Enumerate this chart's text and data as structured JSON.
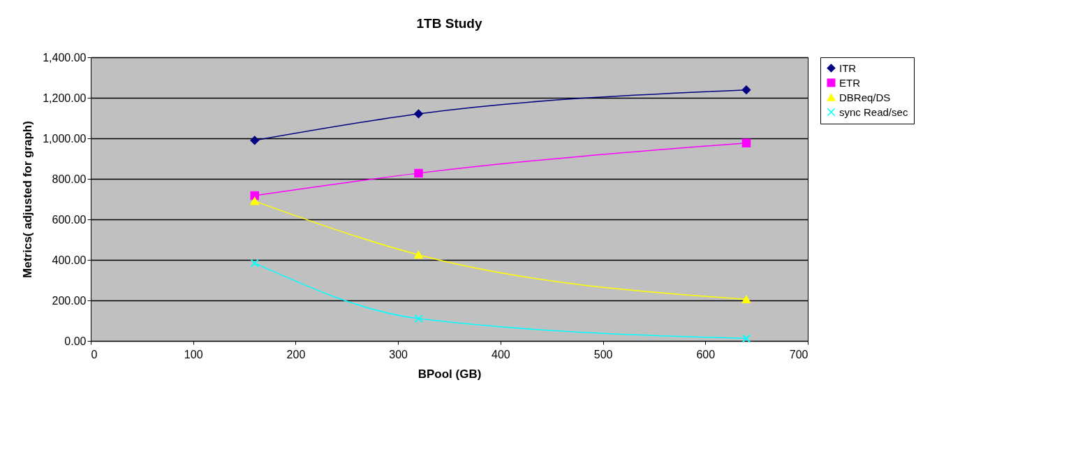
{
  "chart_data": {
    "type": "line",
    "title": "1TB Study",
    "xlabel": "BPool (GB)",
    "ylabel": "Metrics( adjusted for graph)",
    "x": [
      160,
      320,
      640
    ],
    "series": [
      {
        "name": "ITR",
        "color": "#000080",
        "marker": "diamond",
        "values": [
          990,
          1121,
          1239
        ]
      },
      {
        "name": "ETR",
        "color": "#ff00ff",
        "marker": "square",
        "values": [
          717,
          828,
          977
        ]
      },
      {
        "name": "DBReq/DS",
        "color": "#ffff00",
        "marker": "triangle",
        "values": [
          690,
          425,
          205
        ]
      },
      {
        "name": "sync Read/sec",
        "color": "#00ffff",
        "marker": "cross",
        "values": [
          384,
          110,
          12
        ]
      }
    ],
    "xlim": [
      0,
      700
    ],
    "xticks": [
      0,
      100,
      200,
      300,
      400,
      500,
      600,
      700
    ],
    "ylim": [
      0,
      1400
    ],
    "yticks": [
      {
        "value": 0,
        "label": "0.00"
      },
      {
        "value": 200,
        "label": "200.00"
      },
      {
        "value": 400,
        "label": "400.00"
      },
      {
        "value": 600,
        "label": "600.00"
      },
      {
        "value": 800,
        "label": "800.00"
      },
      {
        "value": 1000,
        "label": "1,000.00"
      },
      {
        "value": 1200,
        "label": "1,200.00"
      },
      {
        "value": 1400,
        "label": "1,400.00"
      }
    ],
    "grid": "y",
    "legend": "right",
    "line_style": "solid"
  }
}
